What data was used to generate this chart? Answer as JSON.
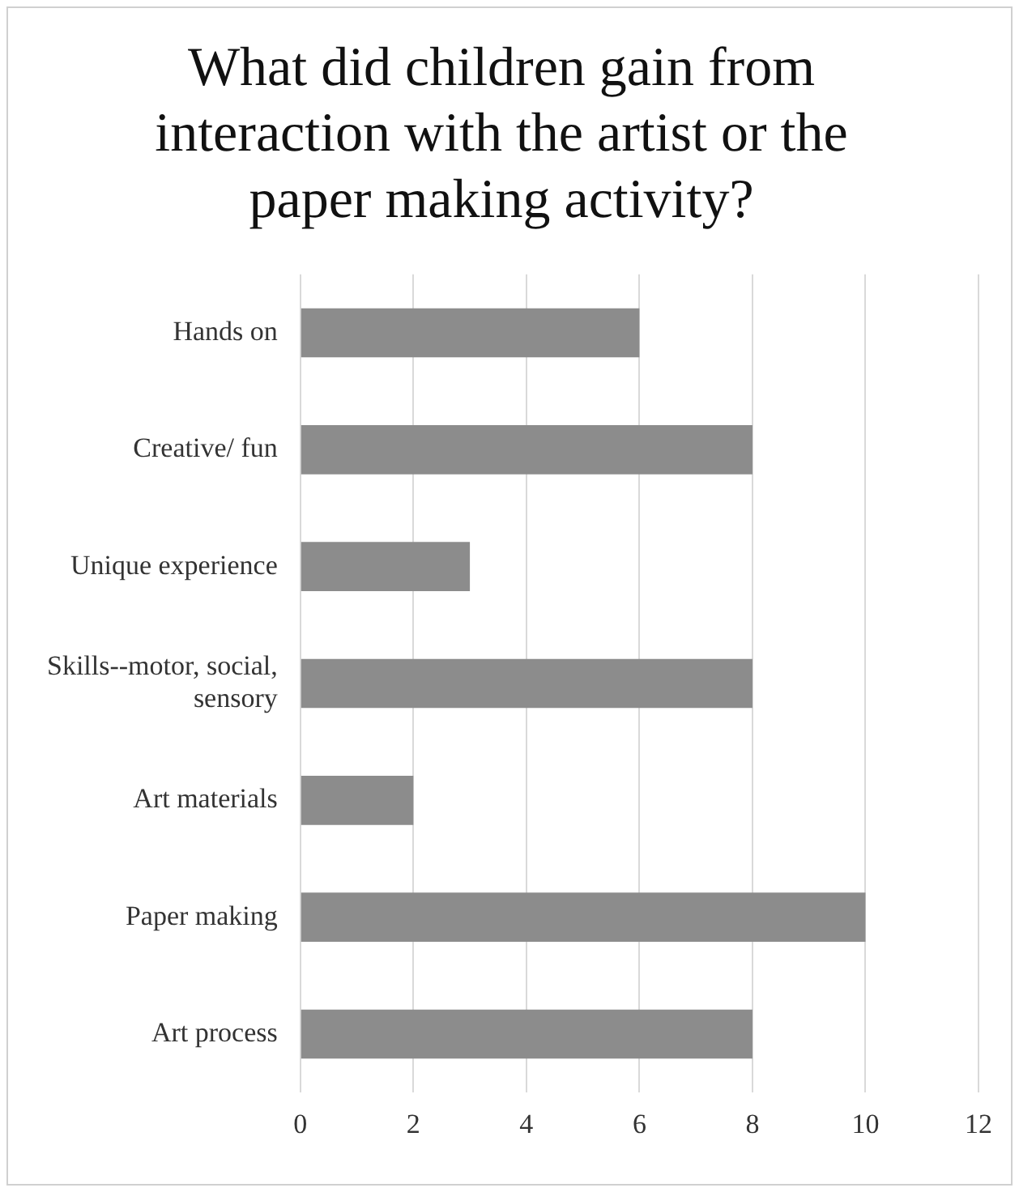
{
  "chart_data": {
    "type": "bar",
    "orientation": "horizontal",
    "title": "What did children gain from interaction with the artist or the paper making activity?",
    "categories": [
      "Hands on",
      "Creative/ fun",
      "Unique experience",
      "Skills--motor, social, sensory",
      "Art materials",
      "Paper making",
      "Art process"
    ],
    "values": [
      6,
      8,
      3,
      8,
      2,
      10,
      8
    ],
    "color": "#8c8c8c",
    "xlim": [
      0,
      12
    ],
    "xticks": [
      0,
      2,
      4,
      6,
      8,
      10,
      12
    ],
    "grid": "x"
  }
}
